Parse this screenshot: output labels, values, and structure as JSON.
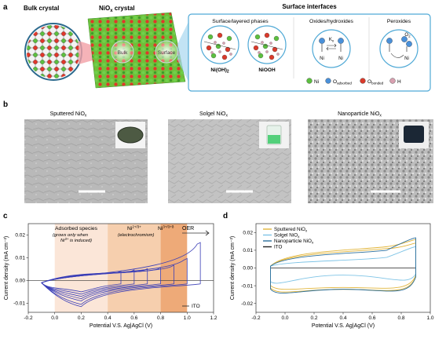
{
  "panel_a": {
    "letter": "a",
    "bulk_crystal": "Bulk crystal",
    "niox_crystal": "NiO",
    "niox_sub": "x",
    "niox_tail": " crystal",
    "bulk_label": "Bulk",
    "surface_label": "Surface",
    "surface_interfaces": "Surface interfaces",
    "layered_title": "Surface/layered phases",
    "oxides_title": "Oxides/hydroxides",
    "peroxides_title": "Peroxides",
    "nioh2": "Ni(OH)",
    "nioh2_sub": "2",
    "niooh": "NiOOH",
    "kx": "K",
    "kx_sub": "x",
    "ni_small": "Ni",
    "o2": "O",
    "o2_sub": "2",
    "legend": {
      "ni": "Ni",
      "o": "O",
      "adsorbed": "adsorbed",
      "bonded": "bonded",
      "h": "H"
    },
    "colors": {
      "ni": "#5cbf3f",
      "o_ads": "#4a90d9",
      "o_bond": "#d93a2b",
      "h": "#d8a0b0",
      "accent": "#4fa9d6"
    }
  },
  "panel_b": {
    "letter": "b",
    "titles": [
      {
        "main": "Sputtered NiO",
        "sub": "x"
      },
      {
        "main": "Solgel NiO",
        "sub": "x"
      },
      {
        "main": "Nanoparticle NiO",
        "sub": "x"
      }
    ]
  },
  "panel_c": {
    "letter": "c",
    "adsorbed_line1": "Adsorbed species",
    "adsorbed_line2": "(grows only when",
    "adsorbed_line3": "Ni",
    "adsorbed_line3_sup": "3+",
    "adsorbed_line3_tail": " is induced)",
    "ni23": "Ni",
    "ni23_sup": "2+/3+",
    "electrochromism": "(electrochromism)",
    "ni34": "Ni",
    "ni34_sup": "3+/3+δ",
    "oer": "OER",
    "ito": "ITO"
  },
  "panel_d": {
    "letter": "d"
  },
  "chart_data": [
    {
      "type": "line",
      "title": "",
      "xlabel": "Potential V.S. Ag|AgCl (V)",
      "ylabel": "Current density (mA cm⁻²)",
      "xlim": [
        -0.2,
        1.2
      ],
      "ylim": [
        -0.014,
        0.025
      ],
      "xticks": [
        "-0.2",
        "0.0",
        "0.2",
        "0.4",
        "0.6",
        "0.8",
        "1.0",
        "1.2"
      ],
      "yticks": [
        "-0.01",
        "0.00",
        "0.01",
        "0.02"
      ],
      "regions": [
        {
          "x": [
            0.0,
            0.4
          ],
          "color": "#fbe6d8"
        },
        {
          "x": [
            0.4,
            0.8
          ],
          "color": "#f6cfae"
        },
        {
          "x": [
            0.8,
            1.0
          ],
          "color": "#eeaa78"
        }
      ],
      "series_color": "#3b3fb7",
      "series": [
        {
          "vmax": 0.5,
          "top": 0.0035,
          "bottom_peak": -0.005
        },
        {
          "vmax": 0.6,
          "top": 0.004,
          "bottom_peak": -0.006
        },
        {
          "vmax": 0.7,
          "top": 0.0045,
          "bottom_peak": -0.007
        },
        {
          "vmax": 0.8,
          "top": 0.005,
          "bottom_peak": -0.008
        },
        {
          "vmax": 0.9,
          "top": 0.006,
          "bottom_peak": -0.009
        },
        {
          "vmax": 1.0,
          "top": 0.009,
          "bottom_peak": -0.0105
        },
        {
          "vmax": 1.1,
          "top": 0.016,
          "bottom_peak": -0.0115
        }
      ],
      "ito_level": 0.0
    },
    {
      "type": "line",
      "title": "",
      "xlabel": "Potential V.S. Ag|AgCl (V)",
      "ylabel": "Current density (mA cm⁻²)",
      "xlim": [
        -0.2,
        1.0
      ],
      "ylim": [
        -0.025,
        0.025
      ],
      "xticks": [
        "-0.2",
        "0.0",
        "0.2",
        "0.4",
        "0.6",
        "0.8",
        "1.0"
      ],
      "yticks": [
        "-0.02",
        "-0.01",
        "0.00",
        "0.01",
        "0.02"
      ],
      "legend": [
        {
          "name": "Sputtered NiO",
          "sub": "x",
          "color": "#e2b53a"
        },
        {
          "name": "Solgel NiO",
          "sub": "x",
          "color": "#7fc4e6"
        },
        {
          "name": "Nanoparticle NiO",
          "sub": "x",
          "color": "#2a6e9c"
        },
        {
          "name": "ITO",
          "sub": "",
          "color": "#222222"
        }
      ],
      "loops": [
        {
          "color": "#e2b53a",
          "top": 0.014,
          "top_mid": 0.009,
          "bottom": -0.014,
          "bottom_mid": -0.011
        },
        {
          "color": "#e2b53a",
          "top": 0.016,
          "top_mid": 0.01,
          "bottom": -0.016,
          "bottom_mid": -0.012
        },
        {
          "color": "#7fc4e6",
          "top": 0.012,
          "top_mid": 0.004,
          "bottom": -0.011,
          "bottom_mid": -0.004
        },
        {
          "color": "#2a6e9c",
          "top": 0.017,
          "top_mid": 0.008,
          "bottom": -0.017,
          "bottom_mid": -0.012
        }
      ]
    }
  ]
}
